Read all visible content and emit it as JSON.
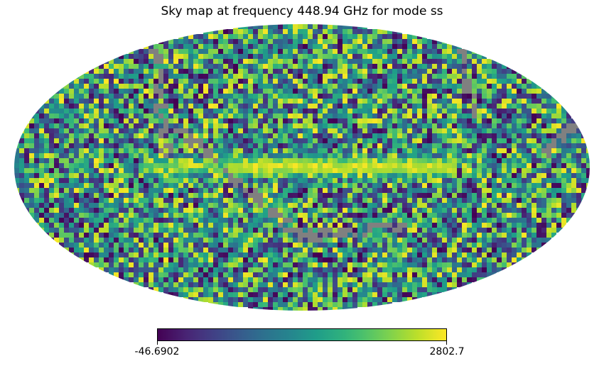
{
  "chart_data": {
    "type": "heatmap",
    "projection": "mollweide",
    "title": "Sky map at frequency 448.94 GHz for mode ss",
    "colormap": "viridis",
    "colorbar": {
      "min": -46.6902,
      "max": 2802.7,
      "min_label": "-46.6902",
      "max_label": "2802.7",
      "orientation": "horizontal"
    },
    "masked_color": "#808080",
    "features": [
      {
        "name": "galactic plane band",
        "lon_range": [
          -60,
          100
        ],
        "lat_center": 0,
        "level": "high"
      }
    ]
  }
}
